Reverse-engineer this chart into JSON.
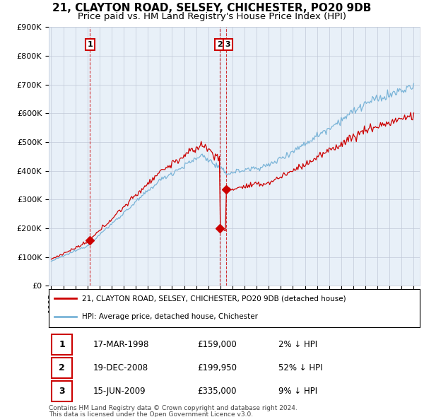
{
  "title": "21, CLAYTON ROAD, SELSEY, CHICHESTER, PO20 9DB",
  "subtitle": "Price paid vs. HM Land Registry's House Price Index (HPI)",
  "hpi_label": "HPI: Average price, detached house, Chichester",
  "property_label": "21, CLAYTON ROAD, SELSEY, CHICHESTER, PO20 9DB (detached house)",
  "footer1": "Contains HM Land Registry data © Crown copyright and database right 2024.",
  "footer2": "This data is licensed under the Open Government Licence v3.0.",
  "ylim": [
    0,
    900000
  ],
  "yticks": [
    0,
    100000,
    200000,
    300000,
    400000,
    500000,
    600000,
    700000,
    800000,
    900000
  ],
  "ytick_labels": [
    "£0",
    "£100K",
    "£200K",
    "£300K",
    "£400K",
    "£500K",
    "£600K",
    "£700K",
    "£800K",
    "£900K"
  ],
  "sale_dates": [
    1998.21,
    2008.96,
    2009.46
  ],
  "sale_prices": [
    159000,
    199950,
    335000
  ],
  "sale_labels": [
    "1",
    "2",
    "3"
  ],
  "sale_annotations": [
    {
      "label": "1",
      "date": "17-MAR-1998",
      "price": "£159,000",
      "hpi_rel": "2% ↓ HPI"
    },
    {
      "label": "2",
      "date": "19-DEC-2008",
      "price": "£199,950",
      "hpi_rel": "52% ↓ HPI"
    },
    {
      "label": "3",
      "date": "15-JUN-2009",
      "price": "£335,000",
      "hpi_rel": "9% ↓ HPI"
    }
  ],
  "hpi_color": "#7ab4d8",
  "sale_color": "#cc0000",
  "chart_bg": "#e8f0f8",
  "grid_color": "#c0c8d8",
  "title_fontsize": 11,
  "subtitle_fontsize": 9.5,
  "tick_fontsize": 8
}
